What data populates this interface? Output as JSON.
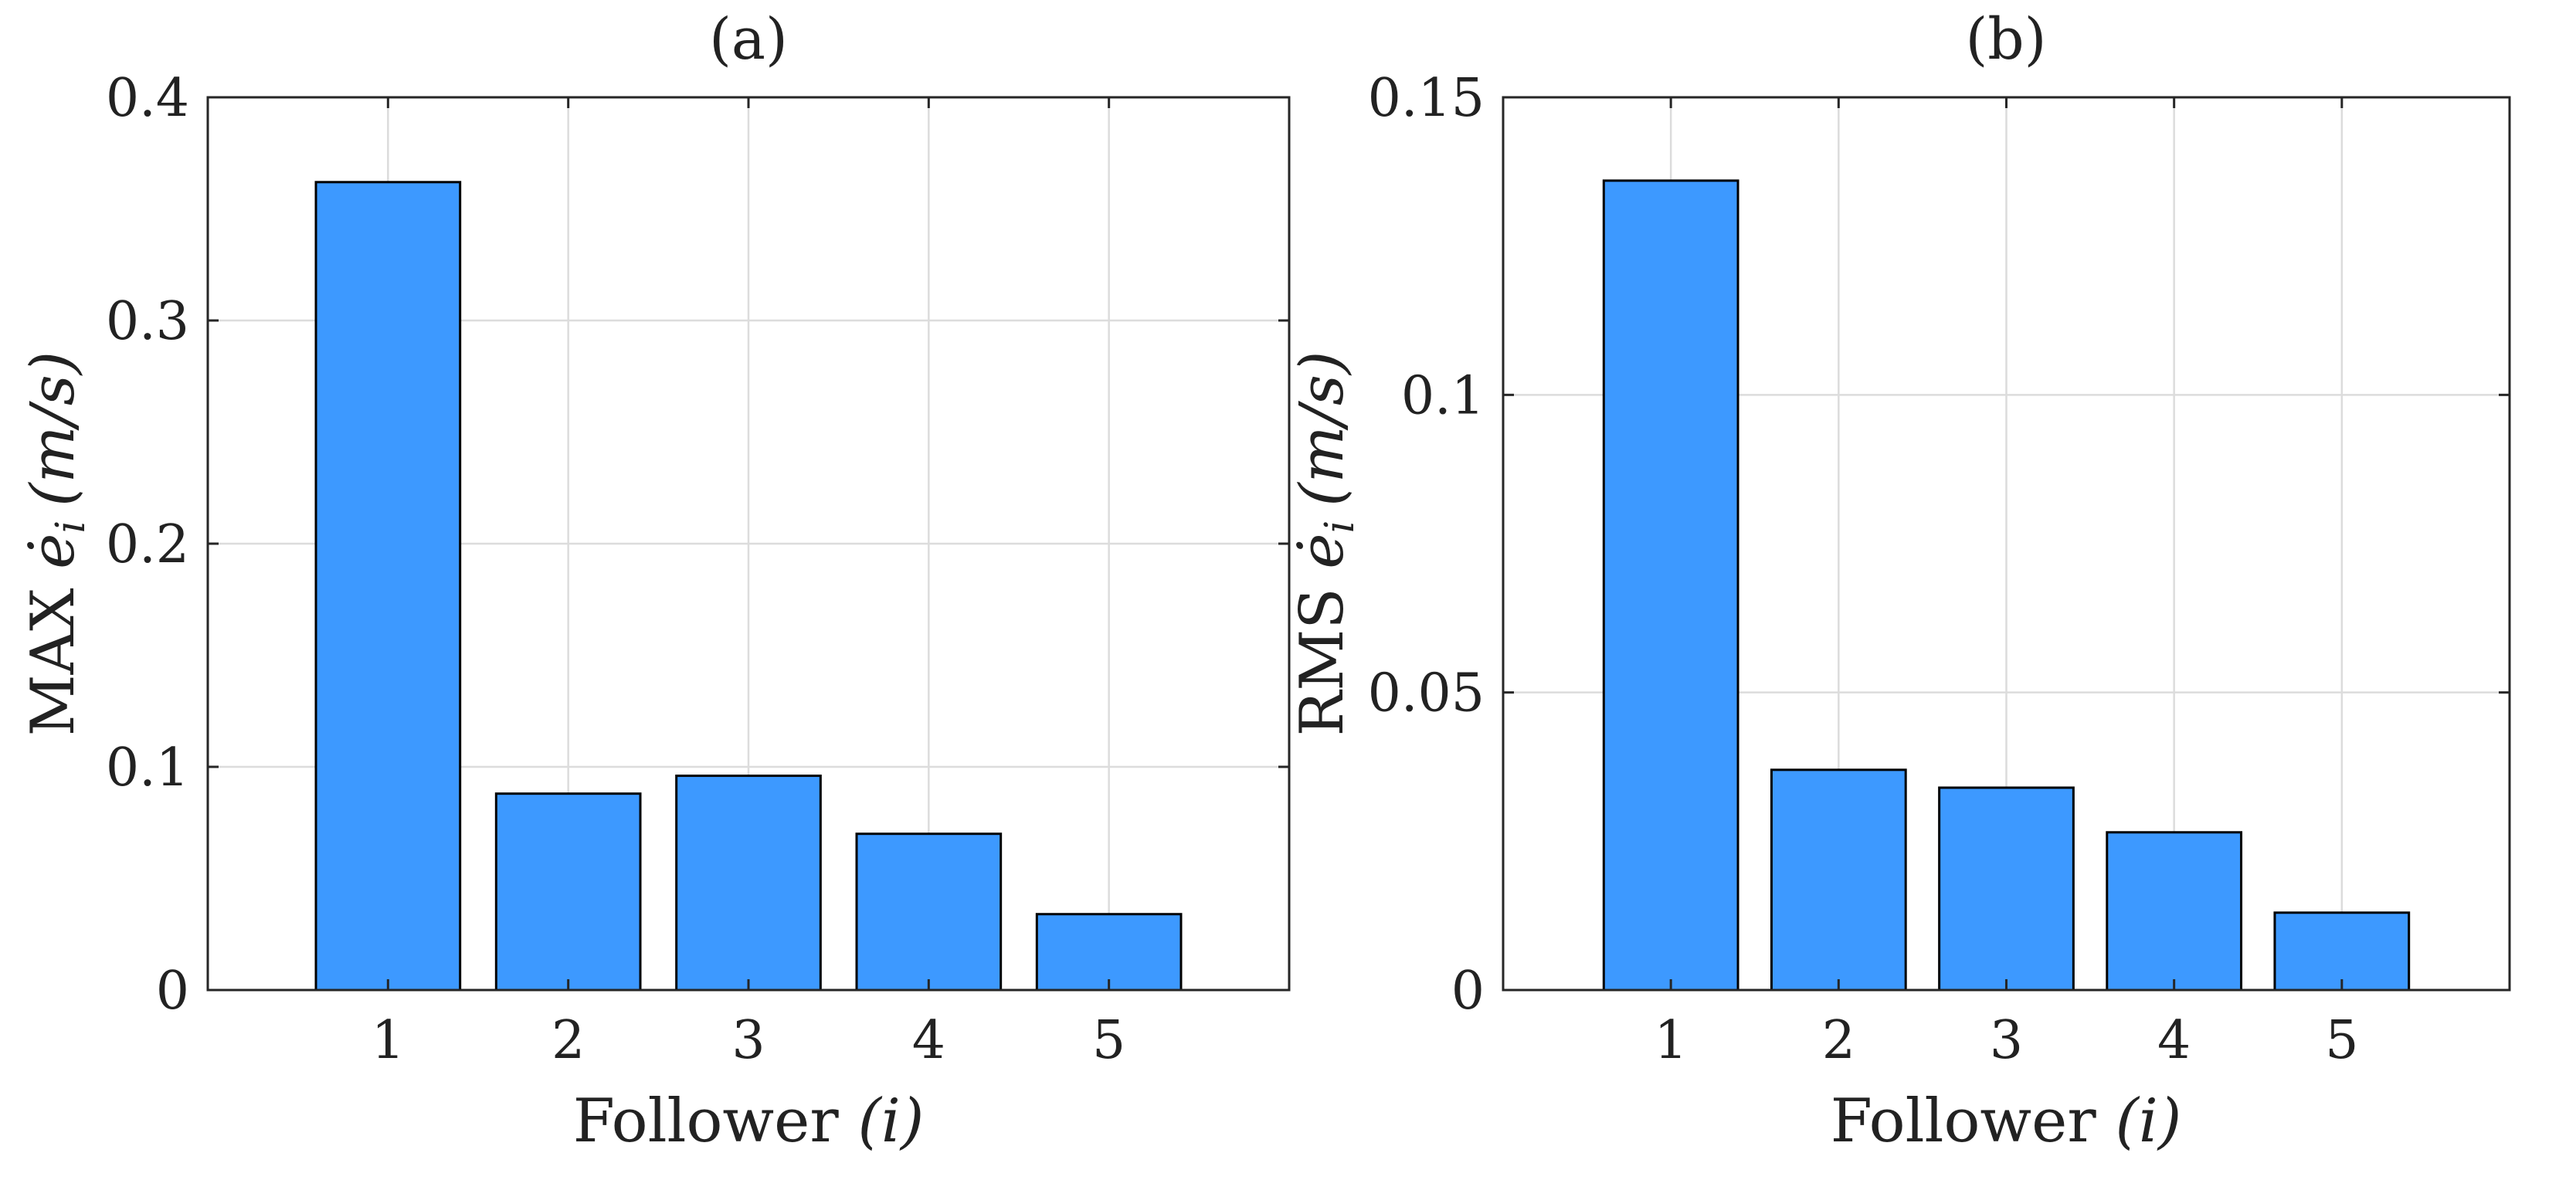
{
  "chart_data": [
    {
      "type": "bar",
      "title": "(a)",
      "categories": [
        "1",
        "2",
        "3",
        "4",
        "5"
      ],
      "values": [
        0.362,
        0.088,
        0.096,
        0.07,
        0.034
      ],
      "xlabel": "Follower",
      "xlabel_var": "(i)",
      "ylabel": "MAX",
      "ylabel_math": "ė",
      "ylabel_sub": "i",
      "ylabel_unit": "(m/s)",
      "ylim": [
        0,
        0.4
      ],
      "xlim": [
        0,
        6
      ],
      "yticks": [
        "0",
        "0.1",
        "0.2",
        "0.3",
        "0.4"
      ],
      "ytick_values": [
        0,
        0.1,
        0.2,
        0.3,
        0.4
      ],
      "grid": true,
      "bar_color": "#3d99ff"
    },
    {
      "type": "bar",
      "title": "(b)",
      "categories": [
        "1",
        "2",
        "3",
        "4",
        "5"
      ],
      "values": [
        0.136,
        0.037,
        0.034,
        0.0265,
        0.013
      ],
      "xlabel": "Follower",
      "xlabel_var": "(i)",
      "ylabel": "RMS",
      "ylabel_math": "ė",
      "ylabel_sub": "i",
      "ylabel_unit": "(m/s)",
      "ylim": [
        0,
        0.15
      ],
      "xlim": [
        0,
        6
      ],
      "yticks": [
        "0",
        "0.05",
        "0.1",
        "0.15"
      ],
      "ytick_values": [
        0,
        0.05,
        0.1,
        0.15
      ],
      "grid": true,
      "bar_color": "#3d99ff"
    }
  ]
}
